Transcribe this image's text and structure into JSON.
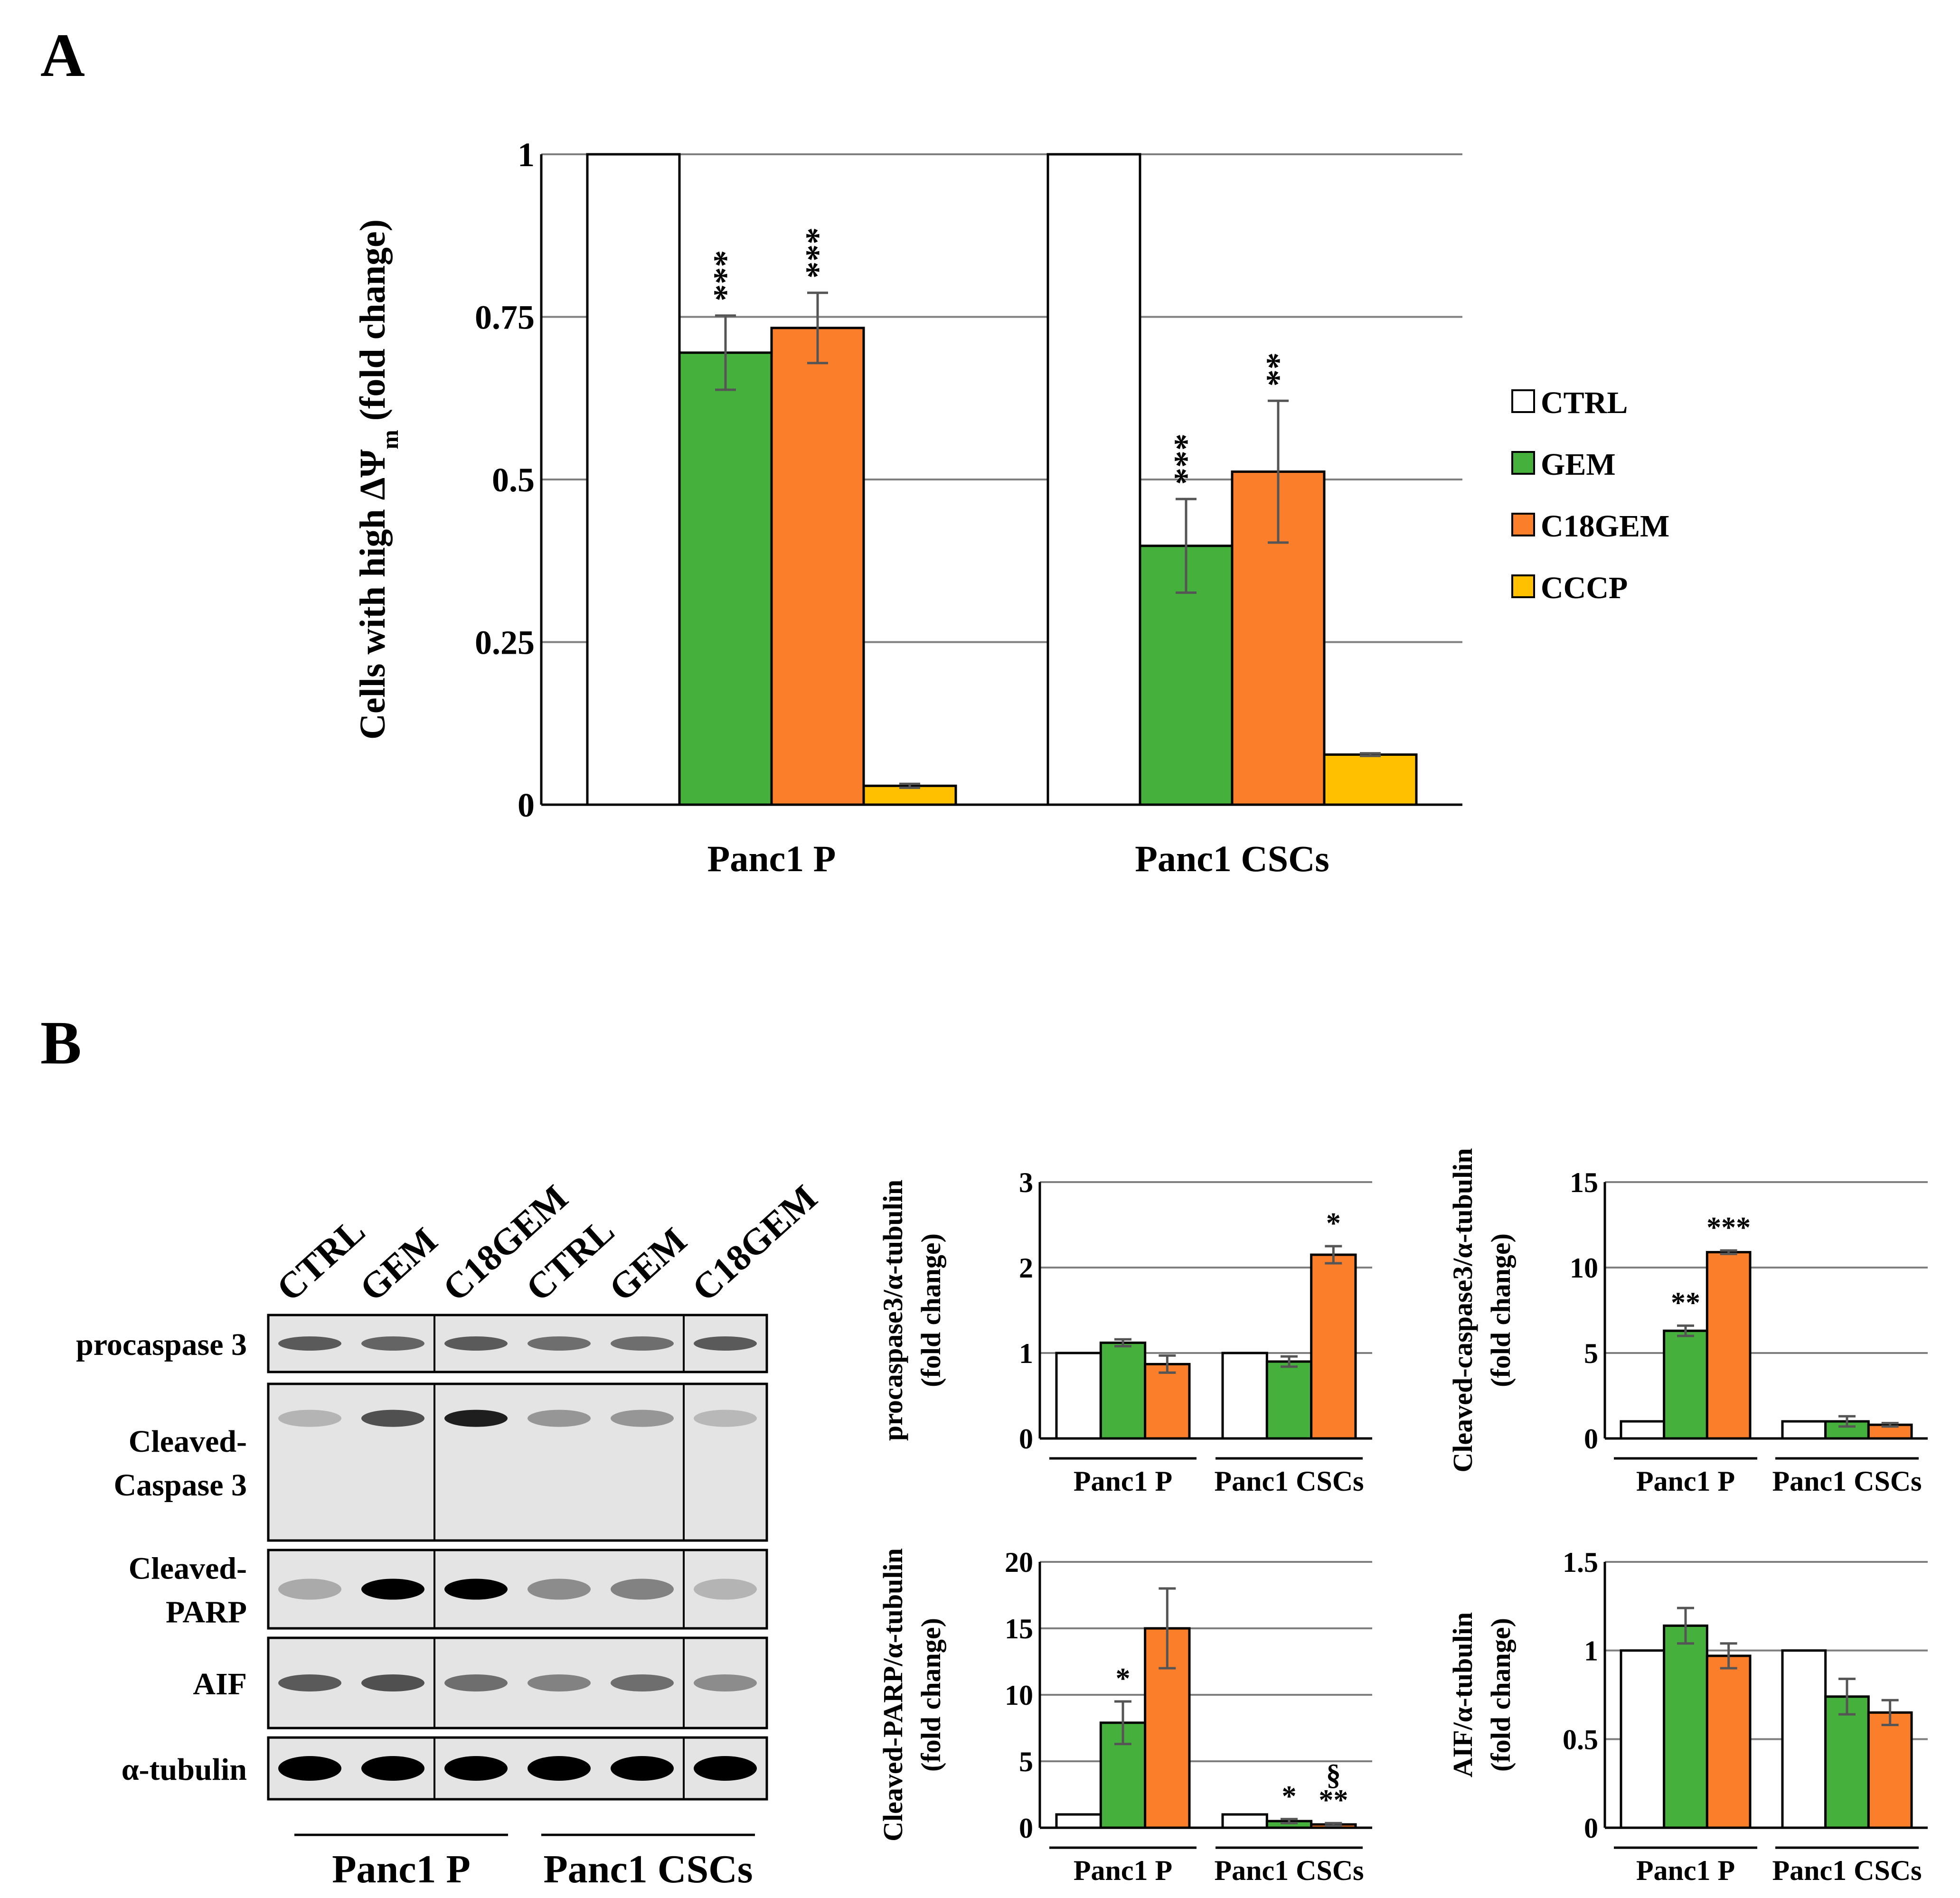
{
  "colors": {
    "CTRL": "#ffffff",
    "GEM": "#46b03c",
    "C18GEM": "#fb7e2a",
    "CCCP": "#ffc000"
  },
  "panel_labels": [
    "A",
    "B"
  ],
  "chart_data": [
    {
      "type": "bar",
      "categories": [
        "Panc1 P",
        "Panc1 CSCs"
      ],
      "ylabel": "Cells with high ΔΨm (fold change)",
      "ylabel_main": "Cells with high ΔΨ",
      "ylabel_sub": "m",
      "ylabel_tail": " (fold change)",
      "ylim": [
        0,
        1
      ],
      "yticks": [
        0,
        0.25,
        0.5,
        0.75,
        1
      ],
      "ytick_labels": [
        "0",
        "0.25",
        "0.5",
        "0.75",
        "1"
      ],
      "grid": true,
      "legend": [
        "CTRL",
        "GEM",
        "C18GEM",
        "CCCP"
      ],
      "legend_placement": "right",
      "series": [
        {
          "name": "CTRL",
          "values": [
            1.0,
            1.0
          ],
          "errors": [
            0,
            0
          ],
          "sig": [
            "",
            ""
          ]
        },
        {
          "name": "GEM",
          "values": [
            0.695,
            0.398
          ],
          "errors": [
            0.057,
            0.072
          ],
          "sig": [
            "***",
            "***"
          ]
        },
        {
          "name": "C18GEM",
          "values": [
            0.733,
            0.512
          ],
          "errors": [
            0.054,
            0.109
          ],
          "sig": [
            "***",
            "**"
          ]
        },
        {
          "name": "CCCP",
          "values": [
            0.029,
            0.077
          ],
          "errors": [
            0.003,
            0.002
          ],
          "sig": [
            "",
            ""
          ]
        }
      ]
    },
    {
      "type": "bar",
      "categories": [
        "Panc1 P",
        "Panc1 CSCs"
      ],
      "ylabel": "procaspase3/α-tubulin (fold change)",
      "ylabel_lines": [
        "procaspase3/α-tubulin",
        "(fold change)"
      ],
      "ylim": [
        0,
        3
      ],
      "yticks": [
        0,
        1,
        2,
        3
      ],
      "ytick_labels": [
        "0",
        "1",
        "2",
        "3"
      ],
      "grid": true,
      "series": [
        {
          "name": "CTRL",
          "values": [
            1.0,
            1.0
          ],
          "errors": [
            0,
            0
          ],
          "sig": [
            "",
            ""
          ]
        },
        {
          "name": "GEM",
          "values": [
            1.12,
            0.9
          ],
          "errors": [
            0.04,
            0.06
          ],
          "sig": [
            "",
            ""
          ]
        },
        {
          "name": "C18GEM",
          "values": [
            0.87,
            2.15
          ],
          "errors": [
            0.1,
            0.1
          ],
          "sig": [
            "",
            "*"
          ]
        }
      ]
    },
    {
      "type": "bar",
      "categories": [
        "Panc1 P",
        "Panc1 CSCs"
      ],
      "ylabel": "Cleaved-caspase3/α-tubulin (fold change)",
      "ylabel_lines": [
        "Cleaved-caspase3/α-tubulin",
        "(fold change)"
      ],
      "ylim": [
        0,
        15
      ],
      "yticks": [
        0,
        5,
        10,
        15
      ],
      "ytick_labels": [
        "0",
        "5",
        "10",
        "15"
      ],
      "grid": true,
      "series": [
        {
          "name": "CTRL",
          "values": [
            1.0,
            1.0
          ],
          "errors": [
            0,
            0
          ],
          "sig": [
            "",
            ""
          ]
        },
        {
          "name": "GEM",
          "values": [
            6.3,
            1.0
          ],
          "errors": [
            0.3,
            0.3
          ],
          "sig": [
            "**",
            ""
          ]
        },
        {
          "name": "C18GEM",
          "values": [
            10.9,
            0.8
          ],
          "errors": [
            0.1,
            0.1
          ],
          "sig": [
            "***",
            ""
          ]
        }
      ]
    },
    {
      "type": "bar",
      "categories": [
        "Panc1 P",
        "Panc1 CSCs"
      ],
      "ylabel": "Cleaved-PARP/α-tubulin (fold change)",
      "ylabel_lines": [
        "Cleaved-PARP/α-tubulin",
        "(fold change)"
      ],
      "ylim": [
        0,
        20
      ],
      "yticks": [
        0,
        5,
        10,
        15,
        20
      ],
      "ytick_labels": [
        "0",
        "5",
        "10",
        "15",
        "20"
      ],
      "grid": true,
      "series": [
        {
          "name": "CTRL",
          "values": [
            1.0,
            1.0
          ],
          "errors": [
            0,
            0
          ],
          "sig": [
            "",
            ""
          ]
        },
        {
          "name": "GEM",
          "values": [
            7.9,
            0.5
          ],
          "errors": [
            1.6,
            0.15
          ],
          "sig": [
            "*",
            "*"
          ]
        },
        {
          "name": "C18GEM",
          "values": [
            15.0,
            0.25
          ],
          "errors": [
            3.0,
            0.1
          ],
          "sig": [
            "",
            "**"
          ]
        }
      ],
      "extra_marks": [
        {
          "text": "§",
          "category": 1,
          "series": 2
        }
      ]
    },
    {
      "type": "bar",
      "categories": [
        "Panc1 P",
        "Panc1 CSCs"
      ],
      "ylabel": "AIF/α-tubulin (fold change)",
      "ylabel_lines": [
        "AIF/α-tubulin",
        "(fold change)"
      ],
      "ylim": [
        0,
        1.5
      ],
      "yticks": [
        0,
        0.5,
        1,
        1.5
      ],
      "ytick_labels": [
        "0",
        "0.5",
        "1",
        "1.5"
      ],
      "grid": true,
      "series": [
        {
          "name": "CTRL",
          "values": [
            1.0,
            1.0
          ],
          "errors": [
            0,
            0
          ],
          "sig": [
            "",
            ""
          ]
        },
        {
          "name": "GEM",
          "values": [
            1.14,
            0.74
          ],
          "errors": [
            0.1,
            0.1
          ],
          "sig": [
            "",
            ""
          ]
        },
        {
          "name": "C18GEM",
          "values": [
            0.97,
            0.65
          ],
          "errors": [
            0.07,
            0.07
          ],
          "sig": [
            "",
            ""
          ]
        }
      ]
    }
  ],
  "western_blot": {
    "lane_labels": [
      "CTRL",
      "GEM",
      "C18GEM",
      "CTRL",
      "GEM",
      "C18GEM"
    ],
    "rows": [
      {
        "label_lines": [
          "procaspase 3"
        ],
        "band_intensities": [
          0.55,
          0.5,
          0.55,
          0.45,
          0.45,
          0.55
        ]
      },
      {
        "label_lines": [
          "Cleaved-",
          "Caspase 3"
        ],
        "band_intensities": [
          0.1,
          0.6,
          0.85,
          0.25,
          0.25,
          0.08
        ]
      },
      {
        "label_lines": [
          "Cleaved-",
          "PARP"
        ],
        "band_intensities": [
          0.15,
          1.0,
          1.0,
          0.3,
          0.35,
          0.1
        ]
      },
      {
        "label_lines": [
          "AIF"
        ],
        "band_intensities": [
          0.55,
          0.6,
          0.45,
          0.35,
          0.45,
          0.3
        ]
      },
      {
        "label_lines": [
          "α-tubulin"
        ],
        "band_intensities": [
          1.0,
          1.0,
          1.0,
          1.0,
          1.0,
          1.0
        ]
      }
    ],
    "group_labels": [
      "Panc1 P",
      "Panc1 CSCs"
    ]
  }
}
